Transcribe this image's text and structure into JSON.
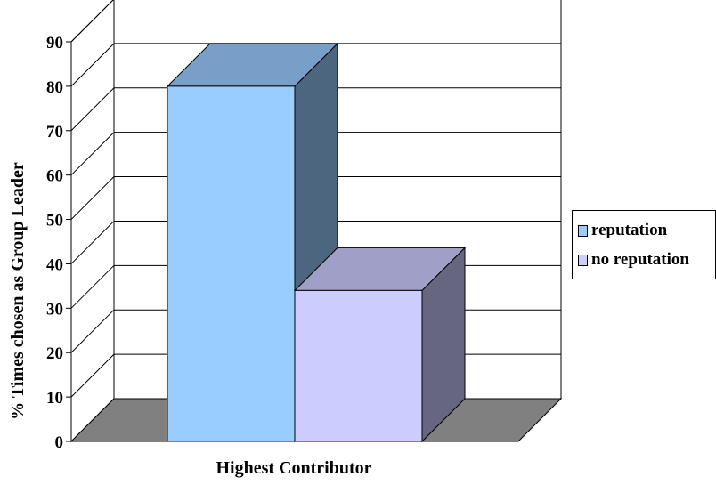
{
  "chart_data": {
    "type": "bar",
    "categories": [
      "Highest Contributor"
    ],
    "series": [
      {
        "name": "reputation",
        "values": [
          80
        ],
        "color": "#99ccff"
      },
      {
        "name": "no reputation",
        "values": [
          34
        ],
        "color": "#ccccff"
      }
    ],
    "xlabel": "Highest Contributor",
    "ylabel": "% Times chosen as Group Leader",
    "ylim": [
      0,
      90
    ],
    "yticks": [
      "0",
      "10",
      "20",
      "30",
      "40",
      "50",
      "60",
      "70",
      "80",
      "90"
    ],
    "grid": true,
    "legend_position": "right",
    "style": "3d"
  }
}
